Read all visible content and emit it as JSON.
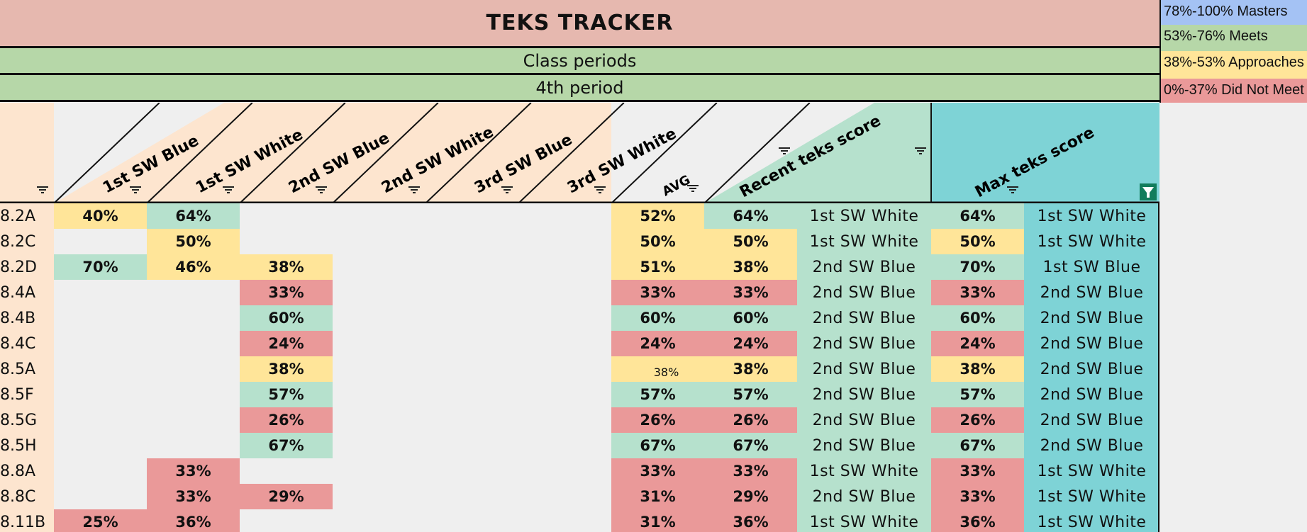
{
  "title": "TEKS TRACKER",
  "subtitle1": "Class periods",
  "subtitle2": "4th period",
  "legend": [
    {
      "label": "78%-100% Masters",
      "color": "#a4c2f4"
    },
    {
      "label": "53%-76% Meets",
      "color": "#b6d7a8"
    },
    {
      "label": "38%-53% Approaches",
      "color": "#ffe599"
    },
    {
      "label": "0%-37% Did Not Meet",
      "color": "#ea9999"
    }
  ],
  "columns": {
    "sw": [
      "1st SW Blue",
      "1st SW White",
      "2nd SW Blue",
      "2nd SW White",
      "3rd SW Blue",
      "3rd SW White"
    ],
    "avg": "AVG",
    "recent": "Recent teks score",
    "max": "Max teks score"
  },
  "colors": {
    "masters": "#a4c2f4",
    "meets": "#b6e1cd",
    "approaches": "#ffe599",
    "did_not_meet": "#ea9999",
    "header_peach": "#fde5cf",
    "max_header": "#7ed3d6"
  },
  "icons": [
    "filter-icon",
    "filter-active-icon"
  ],
  "rows": [
    {
      "teks": "8.2A",
      "sw": [
        "40%",
        "64%",
        "",
        "",
        "",
        ""
      ],
      "swc": [
        "y",
        "g",
        "",
        "",
        "",
        ""
      ],
      "avg": "52%",
      "avgc": "y",
      "recent": "64%",
      "recentc": "g",
      "recent_src": "1st SW White",
      "max": "64%",
      "maxc": "g",
      "max_src": "1st SW White"
    },
    {
      "teks": "8.2C",
      "sw": [
        "",
        "50%",
        "",
        "",
        "",
        ""
      ],
      "swc": [
        "",
        "y",
        "",
        "",
        "",
        ""
      ],
      "avg": "50%",
      "avgc": "y",
      "recent": "50%",
      "recentc": "y",
      "recent_src": "1st SW White",
      "max": "50%",
      "maxc": "y",
      "max_src": "1st SW White"
    },
    {
      "teks": "8.2D",
      "sw": [
        "70%",
        "46%",
        "38%",
        "",
        "",
        ""
      ],
      "swc": [
        "g",
        "y",
        "y",
        "",
        "",
        ""
      ],
      "avg": "51%",
      "avgc": "y",
      "recent": "38%",
      "recentc": "y",
      "recent_src": "2nd SW Blue",
      "max": "70%",
      "maxc": "g",
      "max_src": "1st SW Blue"
    },
    {
      "teks": "8.4A",
      "sw": [
        "",
        "",
        "33%",
        "",
        "",
        ""
      ],
      "swc": [
        "",
        "",
        "r",
        "",
        "",
        ""
      ],
      "avg": "33%",
      "avgc": "r",
      "recent": "33%",
      "recentc": "r",
      "recent_src": "2nd SW Blue",
      "max": "33%",
      "maxc": "r",
      "max_src": "2nd SW Blue"
    },
    {
      "teks": "8.4B",
      "sw": [
        "",
        "",
        "60%",
        "",
        "",
        ""
      ],
      "swc": [
        "",
        "",
        "g",
        "",
        "",
        ""
      ],
      "avg": "60%",
      "avgc": "g",
      "recent": "60%",
      "recentc": "g",
      "recent_src": "2nd SW Blue",
      "max": "60%",
      "maxc": "g",
      "max_src": "2nd SW Blue"
    },
    {
      "teks": "8.4C",
      "sw": [
        "",
        "",
        "24%",
        "",
        "",
        ""
      ],
      "swc": [
        "",
        "",
        "r",
        "",
        "",
        ""
      ],
      "avg": "24%",
      "avgc": "r",
      "recent": "24%",
      "recentc": "r",
      "recent_src": "2nd SW Blue",
      "max": "24%",
      "maxc": "r",
      "max_src": "2nd SW Blue"
    },
    {
      "teks": "8.5A",
      "sw": [
        "",
        "",
        "38%",
        "",
        "",
        ""
      ],
      "swc": [
        "",
        "",
        "y",
        "",
        "",
        ""
      ],
      "avg": "38%",
      "avgc": "y",
      "avg_small": true,
      "recent": "38%",
      "recentc": "y",
      "recent_src": "2nd SW Blue",
      "max": "38%",
      "maxc": "y",
      "max_src": "2nd SW Blue"
    },
    {
      "teks": "8.5F",
      "sw": [
        "",
        "",
        "57%",
        "",
        "",
        ""
      ],
      "swc": [
        "",
        "",
        "g",
        "",
        "",
        ""
      ],
      "avg": "57%",
      "avgc": "g",
      "recent": "57%",
      "recentc": "g",
      "recent_src": "2nd SW Blue",
      "max": "57%",
      "maxc": "g",
      "max_src": "2nd SW Blue"
    },
    {
      "teks": "8.5G",
      "sw": [
        "",
        "",
        "26%",
        "",
        "",
        ""
      ],
      "swc": [
        "",
        "",
        "r",
        "",
        "",
        ""
      ],
      "avg": "26%",
      "avgc": "r",
      "recent": "26%",
      "recentc": "r",
      "recent_src": "2nd SW Blue",
      "max": "26%",
      "maxc": "r",
      "max_src": "2nd SW Blue"
    },
    {
      "teks": "8.5H",
      "sw": [
        "",
        "",
        "67%",
        "",
        "",
        ""
      ],
      "swc": [
        "",
        "",
        "g",
        "",
        "",
        ""
      ],
      "avg": "67%",
      "avgc": "g",
      "recent": "67%",
      "recentc": "g",
      "recent_src": "2nd SW Blue",
      "max": "67%",
      "maxc": "g",
      "max_src": "2nd SW Blue"
    },
    {
      "teks": "8.8A",
      "sw": [
        "",
        "33%",
        "",
        "",
        "",
        ""
      ],
      "swc": [
        "",
        "r",
        "",
        "",
        "",
        ""
      ],
      "avg": "33%",
      "avgc": "r",
      "recent": "33%",
      "recentc": "r",
      "recent_src": "1st SW White",
      "max": "33%",
      "maxc": "r",
      "max_src": "1st SW White"
    },
    {
      "teks": "8.8C",
      "sw": [
        "",
        "33%",
        "29%",
        "",
        "",
        ""
      ],
      "swc": [
        "",
        "r",
        "r",
        "",
        "",
        ""
      ],
      "avg": "31%",
      "avgc": "r",
      "recent": "29%",
      "recentc": "r",
      "recent_src": "2nd SW Blue",
      "max": "33%",
      "maxc": "r",
      "max_src": "1st SW White"
    },
    {
      "teks": "8.11B",
      "sw": [
        "25%",
        "36%",
        "",
        "",
        "",
        ""
      ],
      "swc": [
        "r",
        "r",
        "",
        "",
        "",
        ""
      ],
      "avg": "31%",
      "avgc": "r",
      "recent": "36%",
      "recentc": "r",
      "recent_src": "1st SW White",
      "max": "36%",
      "maxc": "r",
      "max_src": "1st SW White"
    }
  ]
}
